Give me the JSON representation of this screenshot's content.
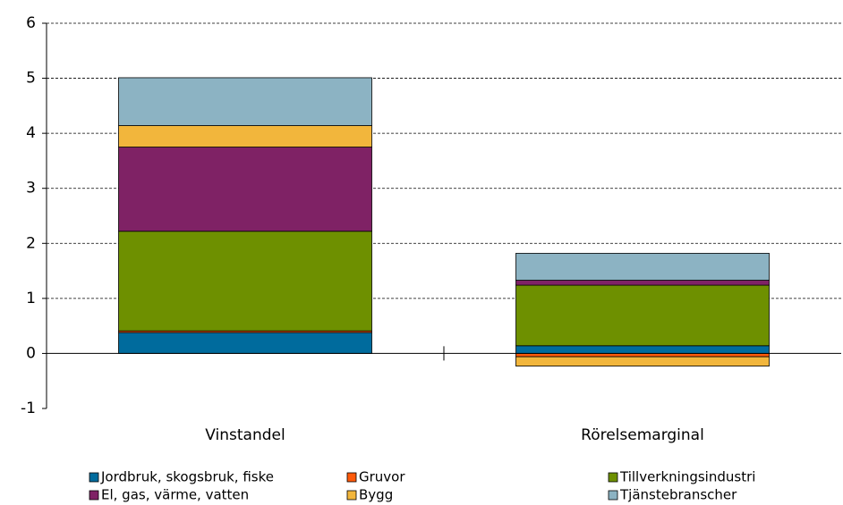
{
  "chart_data": {
    "type": "stacked-bar",
    "categories": [
      "Vinstandel",
      "Rörelsemarginal"
    ],
    "series": [
      {
        "name": "Jordbruk, skogsbruk, fiske",
        "color": "#006b9d",
        "values": [
          0.38,
          0.14
        ]
      },
      {
        "name": "Gruvor",
        "color": "#ff5a0a",
        "values": [
          0.03,
          -0.06
        ]
      },
      {
        "name": "Tillverkningsindustri",
        "color": "#6e9000",
        "values": [
          1.81,
          1.1
        ]
      },
      {
        "name": "El, gas, värme, vatten",
        "color": "#7f2265",
        "values": [
          1.53,
          0.09
        ]
      },
      {
        "name": "Bygg",
        "color": "#f2b63c",
        "values": [
          0.39,
          -0.17
        ]
      },
      {
        "name": "Tjänstebranscher",
        "color": "#8cb3c3",
        "values": [
          0.87,
          0.49
        ]
      }
    ],
    "ylim": [
      -1,
      6
    ],
    "yticks": [
      -1,
      0,
      1,
      2,
      3,
      4,
      5,
      6
    ],
    "grid": true
  }
}
